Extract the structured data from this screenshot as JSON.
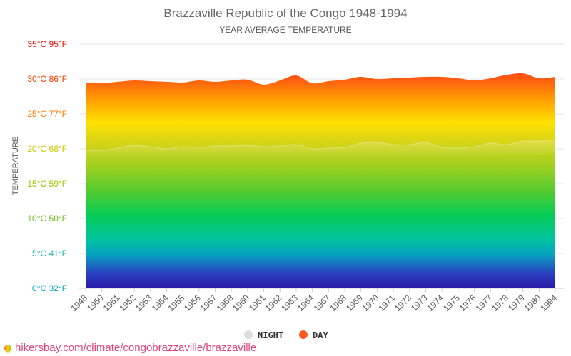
{
  "chart_data": {
    "type": "area",
    "title": "Brazzaville Republic of the Congo 1948-1994",
    "subtitle": "YEAR AVERAGE TEMPERATURE",
    "ylabel": "TEMPERATURE",
    "x": [
      "1948",
      "1950",
      "1951",
      "1952",
      "1953",
      "1954",
      "1955",
      "1956",
      "1957",
      "1958",
      "1960",
      "1961",
      "1962",
      "1963",
      "1964",
      "1967",
      "1968",
      "1969",
      "1970",
      "1971",
      "1972",
      "1973",
      "1974",
      "1975",
      "1976",
      "1977",
      "1978",
      "1979",
      "1980",
      "1994"
    ],
    "series": [
      {
        "name": "NIGHT",
        "color": "#dddddd",
        "values": [
          19.8,
          19.8,
          20.1,
          20.5,
          20.3,
          20.0,
          20.3,
          20.2,
          20.4,
          20.4,
          20.5,
          20.3,
          20.4,
          20.6,
          20.0,
          20.1,
          20.2,
          20.8,
          20.9,
          20.6,
          20.6,
          20.9,
          20.2,
          20.1,
          20.3,
          20.8,
          20.6,
          21.1,
          21.1,
          21.3
        ]
      },
      {
        "name": "DAY",
        "color": "#ff5a1f",
        "values": [
          29.5,
          29.4,
          29.6,
          29.8,
          29.7,
          29.6,
          29.5,
          29.8,
          29.6,
          29.8,
          29.9,
          29.2,
          29.8,
          30.5,
          29.4,
          29.7,
          29.9,
          30.3,
          30.0,
          30.1,
          30.2,
          30.3,
          30.3,
          30.1,
          29.8,
          30.1,
          30.6,
          30.8,
          30.1,
          30.3
        ]
      }
    ],
    "ylim": [
      0,
      35
    ],
    "yticks": [
      {
        "value": 0,
        "label": "0°C 32°F",
        "color": "#00a6c8"
      },
      {
        "value": 5,
        "label": "5°C 41°F",
        "color": "#19b8b0"
      },
      {
        "value": 10,
        "label": "10°C 50°F",
        "color": "#6abf1e"
      },
      {
        "value": 15,
        "label": "15°C 59°F",
        "color": "#a3c400"
      },
      {
        "value": 20,
        "label": "20°C 68°F",
        "color": "#d2c600"
      },
      {
        "value": 25,
        "label": "25°C 77°F",
        "color": "#ff7a00"
      },
      {
        "value": 30,
        "label": "30°C 86°F",
        "color": "#ff3d00"
      },
      {
        "value": 35,
        "label": "35°C 95°F",
        "color": "#ee1111"
      }
    ],
    "grid": true,
    "legend_position": "bottom"
  },
  "footer": {
    "source": "hikersbay.com/climate/congobrazzaville/brazzaville"
  }
}
